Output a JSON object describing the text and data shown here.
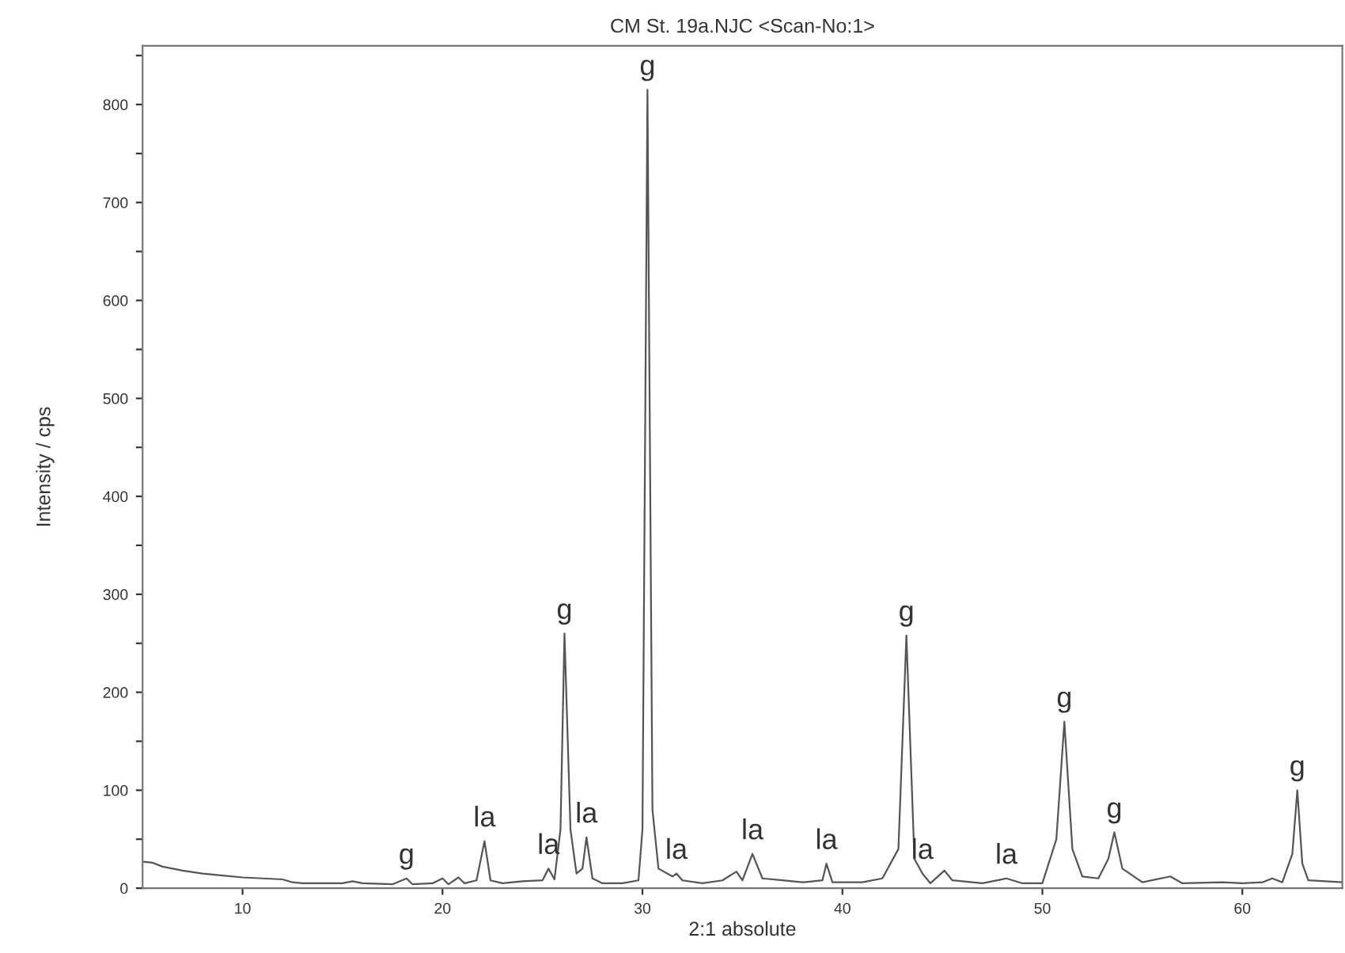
{
  "chart_data": {
    "type": "line",
    "title": "CM St. 19a.NJC <Scan-No:1>",
    "xlabel": "2:1 absolute",
    "ylabel": "Intensity / cps",
    "xlim": [
      5,
      65
    ],
    "xticks": [
      10,
      20,
      30,
      40,
      50,
      60
    ],
    "ylim": [
      0,
      860
    ],
    "yticks": [
      0,
      {
        "value": 50,
        "label": null
      },
      100,
      {
        "value": 150,
        "label": null
      },
      200,
      {
        "value": 250,
        "label": null
      },
      300,
      {
        "value": 350,
        "label": null
      },
      400,
      {
        "value": 450,
        "label": null
      },
      500,
      {
        "value": 550,
        "label": null
      },
      600,
      {
        "value": 650,
        "label": null
      },
      700,
      {
        "value": 750,
        "label": null
      },
      800,
      {
        "value": 850,
        "label": null
      }
    ],
    "grid": false,
    "legend": false,
    "series": [
      {
        "color": "#555555",
        "x": [
          5.0,
          5.5,
          6,
          7,
          8,
          9,
          10,
          11,
          12,
          12.5,
          13,
          15,
          15.5,
          16,
          17.5,
          18.2,
          18.5,
          19.5,
          20,
          20.3,
          20.8,
          21.1,
          21.7,
          22.1,
          22.4,
          23,
          24,
          25,
          25.3,
          25.6,
          25.9,
          26.1,
          26.4,
          26.7,
          27.0,
          27.2,
          27.5,
          28,
          29,
          29.8,
          30.0,
          30.25,
          30.5,
          30.8,
          31.5,
          31.7,
          32,
          33,
          34,
          34.7,
          35.0,
          35.5,
          36,
          37,
          38,
          39.0,
          39.2,
          39.5,
          41,
          42,
          42.8,
          43.2,
          43.6,
          44,
          44.4,
          45.1,
          45.5,
          47,
          48.2,
          49,
          50,
          50.7,
          51.1,
          51.5,
          52,
          52.8,
          53.3,
          53.6,
          54,
          55,
          56.4,
          57,
          59,
          60,
          61,
          61.5,
          62,
          62.5,
          62.75,
          63,
          63.3,
          65
        ],
        "values": [
          27,
          26,
          22,
          18,
          15,
          13,
          11,
          10,
          9,
          6,
          5,
          5,
          7,
          5,
          4,
          10,
          4,
          5,
          10,
          4,
          11,
          5,
          8,
          48,
          8,
          5,
          7,
          8,
          20,
          9,
          60,
          260,
          60,
          15,
          20,
          52,
          10,
          5,
          5,
          8,
          60,
          815,
          80,
          20,
          12,
          15,
          8,
          5,
          8,
          17,
          8,
          35,
          10,
          8,
          6,
          8,
          25,
          6,
          6,
          10,
          40,
          258,
          30,
          15,
          5,
          18,
          8,
          5,
          10,
          5,
          5,
          50,
          170,
          40,
          12,
          10,
          30,
          57,
          20,
          6,
          12,
          5,
          6,
          5,
          6,
          10,
          6,
          35,
          100,
          25,
          8,
          6
        ]
      }
    ],
    "annotations": [
      {
        "text": "g",
        "x": 18.2,
        "y": 10
      },
      {
        "text": "la",
        "x": 22.1,
        "y": 48
      },
      {
        "text": "la",
        "x": 25.3,
        "y": 20
      },
      {
        "text": "g",
        "x": 26.1,
        "y": 260
      },
      {
        "text": "la",
        "x": 27.2,
        "y": 52
      },
      {
        "text": "g",
        "x": 30.25,
        "y": 815
      },
      {
        "text": "la",
        "x": 31.7,
        "y": 15
      },
      {
        "text": "la",
        "x": 35.5,
        "y": 35
      },
      {
        "text": "la",
        "x": 39.2,
        "y": 25
      },
      {
        "text": "g",
        "x": 43.2,
        "y": 258
      },
      {
        "text": "la",
        "x": 44,
        "y": 15
      },
      {
        "text": "la",
        "x": 48.2,
        "y": 10
      },
      {
        "text": "g",
        "x": 51.1,
        "y": 170
      },
      {
        "text": "g",
        "x": 53.6,
        "y": 57
      },
      {
        "text": "g",
        "x": 62.75,
        "y": 100
      }
    ]
  }
}
